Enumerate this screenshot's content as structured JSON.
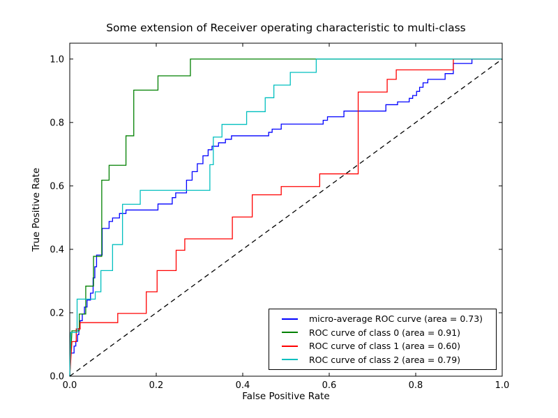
{
  "title": "Some extension of Receiver operating characteristic to multi-class",
  "axes": {
    "xlabel": "False Positive Rate",
    "ylabel": "True Positive Rate",
    "xticks": [
      "0.0",
      "0.2",
      "0.4",
      "0.6",
      "0.8",
      "1.0"
    ],
    "yticks": [
      "0.0",
      "0.2",
      "0.4",
      "0.6",
      "0.8",
      "1.0"
    ],
    "xtick_values": [
      0.0,
      0.2,
      0.4,
      0.6,
      0.8,
      1.0
    ],
    "ytick_values": [
      0.0,
      0.2,
      0.4,
      0.6,
      0.8,
      1.0
    ]
  },
  "chart_data": {
    "type": "line",
    "title": "Some extension of Receiver operating characteristic to multi-class",
    "xlabel": "False Positive Rate",
    "ylabel": "True Positive Rate",
    "xlim": [
      0.0,
      1.0
    ],
    "ylim": [
      0.0,
      1.05
    ],
    "grid": false,
    "legend_position": "lower right",
    "series": [
      {
        "key": "micro-average-roc-curve",
        "name": "micro-average ROC curve (area = 0.73)",
        "auc": 0.73,
        "color": "#0000ff",
        "points": [
          [
            0,
            0
          ],
          [
            0.002,
            0.073
          ],
          [
            0.01,
            0.073
          ],
          [
            0.01,
            0.095
          ],
          [
            0.014,
            0.095
          ],
          [
            0.014,
            0.11
          ],
          [
            0.018,
            0.11
          ],
          [
            0.018,
            0.131
          ],
          [
            0.021,
            0.131
          ],
          [
            0.021,
            0.15
          ],
          [
            0.024,
            0.15
          ],
          [
            0.024,
            0.175
          ],
          [
            0.029,
            0.175
          ],
          [
            0.029,
            0.196
          ],
          [
            0.034,
            0.196
          ],
          [
            0.034,
            0.218
          ],
          [
            0.04,
            0.218
          ],
          [
            0.04,
            0.24
          ],
          [
            0.048,
            0.24
          ],
          [
            0.048,
            0.262
          ],
          [
            0.054,
            0.262
          ],
          [
            0.054,
            0.31
          ],
          [
            0.058,
            0.31
          ],
          [
            0.058,
            0.345
          ],
          [
            0.062,
            0.345
          ],
          [
            0.062,
            0.382
          ],
          [
            0.075,
            0.382
          ],
          [
            0.075,
            0.466
          ],
          [
            0.091,
            0.466
          ],
          [
            0.091,
            0.488
          ],
          [
            0.099,
            0.488
          ],
          [
            0.099,
            0.499
          ],
          [
            0.115,
            0.499
          ],
          [
            0.115,
            0.513
          ],
          [
            0.13,
            0.513
          ],
          [
            0.13,
            0.524
          ],
          [
            0.2,
            0.524
          ],
          [
            0.204,
            0.524
          ],
          [
            0.204,
            0.543
          ],
          [
            0.237,
            0.543
          ],
          [
            0.237,
            0.563
          ],
          [
            0.245,
            0.563
          ],
          [
            0.245,
            0.578
          ],
          [
            0.27,
            0.578
          ],
          [
            0.27,
            0.618
          ],
          [
            0.283,
            0.618
          ],
          [
            0.283,
            0.645
          ],
          [
            0.295,
            0.645
          ],
          [
            0.295,
            0.67
          ],
          [
            0.308,
            0.67
          ],
          [
            0.308,
            0.695
          ],
          [
            0.32,
            0.695
          ],
          [
            0.32,
            0.714
          ],
          [
            0.329,
            0.714
          ],
          [
            0.329,
            0.725
          ],
          [
            0.344,
            0.725
          ],
          [
            0.344,
            0.736
          ],
          [
            0.36,
            0.736
          ],
          [
            0.36,
            0.747
          ],
          [
            0.374,
            0.747
          ],
          [
            0.374,
            0.758
          ],
          [
            0.46,
            0.758
          ],
          [
            0.46,
            0.769
          ],
          [
            0.468,
            0.769
          ],
          [
            0.468,
            0.779
          ],
          [
            0.489,
            0.779
          ],
          [
            0.489,
            0.795
          ],
          [
            0.586,
            0.795
          ],
          [
            0.586,
            0.807
          ],
          [
            0.596,
            0.807
          ],
          [
            0.596,
            0.818
          ],
          [
            0.634,
            0.818
          ],
          [
            0.634,
            0.836
          ],
          [
            0.731,
            0.836
          ],
          [
            0.731,
            0.856
          ],
          [
            0.758,
            0.856
          ],
          [
            0.758,
            0.865
          ],
          [
            0.785,
            0.865
          ],
          [
            0.785,
            0.876
          ],
          [
            0.793,
            0.876
          ],
          [
            0.793,
            0.885
          ],
          [
            0.802,
            0.885
          ],
          [
            0.802,
            0.898
          ],
          [
            0.809,
            0.898
          ],
          [
            0.809,
            0.911
          ],
          [
            0.817,
            0.911
          ],
          [
            0.817,
            0.925
          ],
          [
            0.828,
            0.925
          ],
          [
            0.828,
            0.936
          ],
          [
            0.868,
            0.936
          ],
          [
            0.868,
            0.954
          ],
          [
            0.887,
            0.954
          ],
          [
            0.887,
            0.986
          ],
          [
            0.93,
            0.986
          ],
          [
            0.93,
            1.0
          ],
          [
            1,
            1
          ]
        ]
      },
      {
        "key": "roc-curve-class-0",
        "name": "ROC curve of class 0 (area = 0.91)",
        "auc": 0.91,
        "color": "#008000",
        "points": [
          [
            0,
            0
          ],
          [
            0.005,
            0.143
          ],
          [
            0.022,
            0.143
          ],
          [
            0.022,
            0.196
          ],
          [
            0.037,
            0.196
          ],
          [
            0.037,
            0.284
          ],
          [
            0.055,
            0.284
          ],
          [
            0.055,
            0.378
          ],
          [
            0.074,
            0.378
          ],
          [
            0.074,
            0.618
          ],
          [
            0.091,
            0.618
          ],
          [
            0.091,
            0.665
          ],
          [
            0.13,
            0.665
          ],
          [
            0.13,
            0.758
          ],
          [
            0.148,
            0.758
          ],
          [
            0.148,
            0.902
          ],
          [
            0.204,
            0.902
          ],
          [
            0.204,
            0.947
          ],
          [
            0.279,
            0.947
          ],
          [
            0.279,
            1.0
          ],
          [
            1,
            1
          ]
        ]
      },
      {
        "key": "roc-curve-class-1",
        "name": "ROC curve of class 1 (area = 0.60)",
        "auc": 0.6,
        "color": "#ff0000",
        "points": [
          [
            0,
            0
          ],
          [
            0.005,
            0.109
          ],
          [
            0.015,
            0.109
          ],
          [
            0.015,
            0.149
          ],
          [
            0.024,
            0.149
          ],
          [
            0.024,
            0.169
          ],
          [
            0.111,
            0.169
          ],
          [
            0.111,
            0.198
          ],
          [
            0.177,
            0.198
          ],
          [
            0.177,
            0.266
          ],
          [
            0.202,
            0.266
          ],
          [
            0.202,
            0.333
          ],
          [
            0.246,
            0.333
          ],
          [
            0.246,
            0.397
          ],
          [
            0.266,
            0.397
          ],
          [
            0.266,
            0.433
          ],
          [
            0.376,
            0.433
          ],
          [
            0.376,
            0.502
          ],
          [
            0.422,
            0.502
          ],
          [
            0.422,
            0.572
          ],
          [
            0.489,
            0.572
          ],
          [
            0.489,
            0.598
          ],
          [
            0.578,
            0.598
          ],
          [
            0.578,
            0.638
          ],
          [
            0.667,
            0.638
          ],
          [
            0.667,
            0.896
          ],
          [
            0.734,
            0.896
          ],
          [
            0.734,
            0.936
          ],
          [
            0.755,
            0.936
          ],
          [
            0.755,
            0.966
          ],
          [
            0.887,
            0.966
          ],
          [
            0.887,
            1.0
          ],
          [
            1,
            1
          ]
        ]
      },
      {
        "key": "roc-curve-class-2",
        "name": "ROC curve of class 2 (area = 0.79)",
        "auc": 0.79,
        "color": "#00bfbf",
        "points": [
          [
            0,
            0
          ],
          [
            0.002,
            0.138
          ],
          [
            0.017,
            0.138
          ],
          [
            0.017,
            0.243
          ],
          [
            0.059,
            0.243
          ],
          [
            0.059,
            0.266
          ],
          [
            0.072,
            0.266
          ],
          [
            0.072,
            0.333
          ],
          [
            0.099,
            0.333
          ],
          [
            0.099,
            0.415
          ],
          [
            0.122,
            0.415
          ],
          [
            0.122,
            0.542
          ],
          [
            0.163,
            0.542
          ],
          [
            0.163,
            0.586
          ],
          [
            0.324,
            0.586
          ],
          [
            0.324,
            0.667
          ],
          [
            0.332,
            0.667
          ],
          [
            0.332,
            0.754
          ],
          [
            0.352,
            0.754
          ],
          [
            0.352,
            0.794
          ],
          [
            0.409,
            0.794
          ],
          [
            0.409,
            0.834
          ],
          [
            0.452,
            0.834
          ],
          [
            0.452,
            0.878
          ],
          [
            0.472,
            0.878
          ],
          [
            0.472,
            0.918
          ],
          [
            0.51,
            0.918
          ],
          [
            0.51,
            0.958
          ],
          [
            0.57,
            0.958
          ],
          [
            0.57,
            1.0
          ],
          [
            1,
            1
          ]
        ]
      }
    ],
    "reference_line": {
      "key": "chance-diagonal",
      "style": "dashed",
      "color": "#000000",
      "points": [
        [
          0,
          0
        ],
        [
          1,
          1
        ]
      ]
    }
  }
}
